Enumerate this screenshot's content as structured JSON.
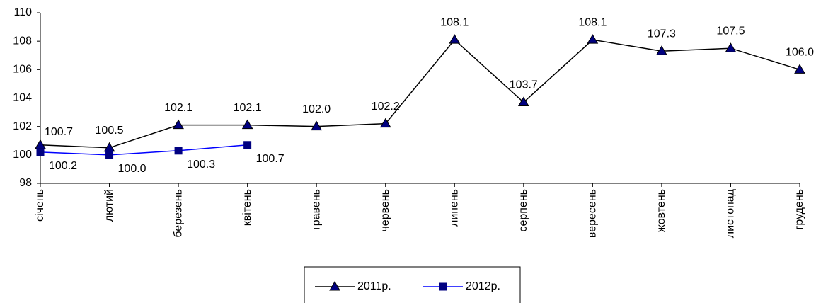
{
  "chart_data": {
    "type": "line",
    "categories": [
      "січень",
      "лютий",
      "березень",
      "квітень",
      "травень",
      "червень",
      "липень",
      "серпень",
      "вересень",
      "жовтень",
      "листопад",
      "грудень"
    ],
    "series": [
      {
        "name": "2011р.",
        "color": "#000000",
        "marker": "triangle",
        "marker_color": "#000080",
        "values": [
          100.7,
          100.5,
          102.1,
          102.1,
          102.0,
          102.2,
          108.1,
          103.7,
          108.1,
          107.3,
          107.5,
          106.0
        ],
        "value_labels": [
          "100.7",
          "100.5",
          "102.1",
          "102.1",
          "102.0",
          "102.2",
          "108.1",
          "103.7",
          "108.1",
          "107.3",
          "107.5",
          "106.0"
        ]
      },
      {
        "name": "2012р.",
        "color": "#0000ff",
        "marker": "square",
        "marker_color": "#000080",
        "values": [
          100.2,
          100.0,
          100.3,
          100.7,
          null,
          null,
          null,
          null,
          null,
          null,
          null,
          null
        ],
        "value_labels": [
          "100.2",
          "100.0",
          "100.3",
          "100.7",
          null,
          null,
          null,
          null,
          null,
          null,
          null,
          null
        ]
      }
    ],
    "ylim": [
      98,
      110
    ],
    "yticks": [
      98,
      100,
      102,
      104,
      106,
      108,
      110
    ],
    "grid": false
  }
}
